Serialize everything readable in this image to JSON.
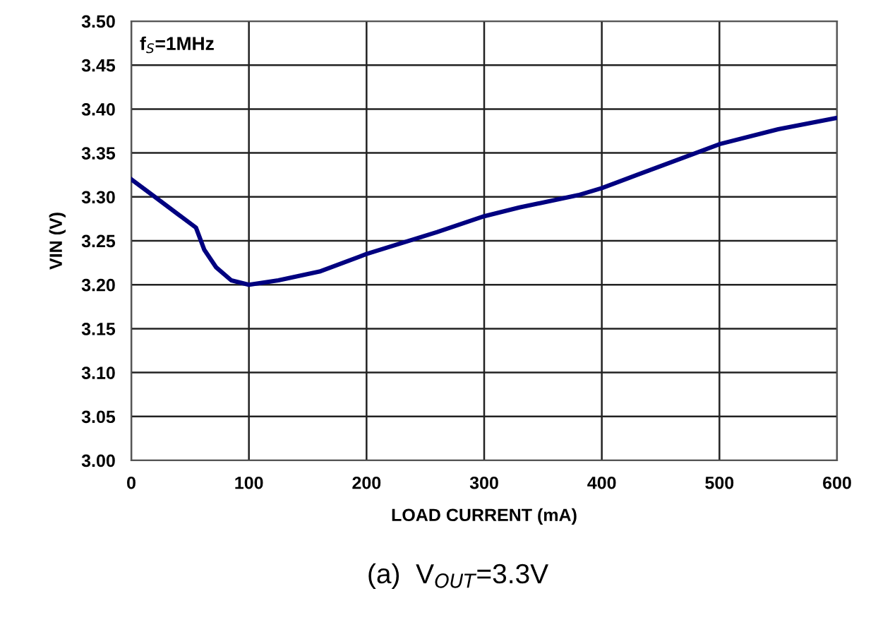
{
  "chart_data": {
    "type": "line",
    "xlabel": "LOAD CURRENT (mA)",
    "ylabel": "VIN (V)",
    "x": [
      0,
      20,
      40,
      55,
      62,
      72,
      85,
      100,
      125,
      160,
      200,
      260,
      300,
      330,
      380,
      400,
      430,
      470,
      500,
      550,
      600
    ],
    "series": [
      {
        "color": "#000080",
        "values": [
          3.32,
          3.3,
          3.28,
          3.265,
          3.24,
          3.22,
          3.205,
          3.2,
          3.205,
          3.215,
          3.235,
          3.26,
          3.278,
          3.288,
          3.302,
          3.31,
          3.325,
          3.345,
          3.36,
          3.377,
          3.39
        ]
      }
    ],
    "xlim": [
      0,
      600
    ],
    "xticks": [
      0,
      100,
      200,
      300,
      400,
      500,
      600
    ],
    "ylim": [
      3.0,
      3.5
    ],
    "yticks": [
      {
        "value": 3.0,
        "label": "3.00"
      },
      {
        "value": 3.05,
        "label": "3.05"
      },
      {
        "value": 3.1,
        "label": "3.10"
      },
      {
        "value": 3.15,
        "label": "3.15"
      },
      {
        "value": 3.2,
        "label": "3.20"
      },
      {
        "value": 3.25,
        "label": "3.25"
      },
      {
        "value": 3.3,
        "label": "3.30"
      },
      {
        "value": 3.35,
        "label": "3.35"
      },
      {
        "value": 3.4,
        "label": "3.40"
      },
      {
        "value": 3.45,
        "label": "3.45"
      },
      {
        "value": 3.5,
        "label": "3.50"
      }
    ],
    "grid": true,
    "marker": "none",
    "line_style": "solid",
    "legend": false,
    "annotations": [
      "f$_{S}$=1MHz",
      "(a)  V$_{OUT}$=3.3V"
    ]
  }
}
